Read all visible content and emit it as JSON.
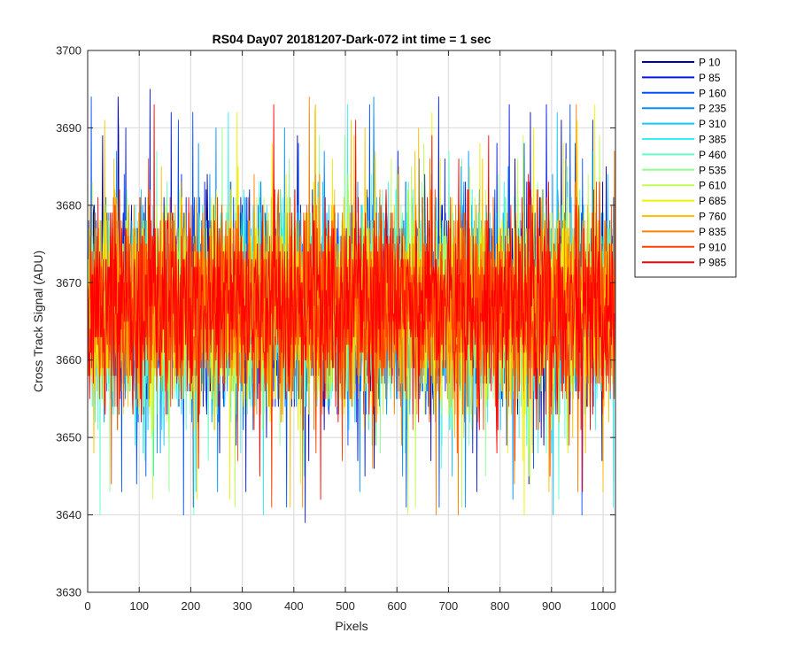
{
  "chart_data": {
    "type": "line",
    "title": "RS04 Day07 20181207-Dark-072 int time = 1 sec",
    "xlabel": "Pixels",
    "ylabel": "Cross Track Signal (ADU)",
    "xlim": [
      0,
      1024
    ],
    "ylim": [
      3630,
      3700
    ],
    "xticks": [
      0,
      100,
      200,
      300,
      400,
      500,
      600,
      700,
      800,
      900,
      1000
    ],
    "yticks": [
      3630,
      3640,
      3650,
      3660,
      3670,
      3680,
      3690,
      3700
    ],
    "xtick_labels": [
      "0",
      "100",
      "200",
      "300",
      "400",
      "500",
      "600",
      "700",
      "800",
      "900",
      "1000"
    ],
    "ytick_labels": [
      "3630",
      "3640",
      "3650",
      "3660",
      "3670",
      "3680",
      "3690",
      "3700"
    ],
    "grid": true,
    "legend_position": "outside-top-right",
    "noise": {
      "mean": 3667,
      "typical_range": [
        3650,
        3685
      ],
      "extreme_range": [
        3637,
        3696
      ]
    },
    "series": [
      {
        "name": "P 10",
        "color": "#0000aa"
      },
      {
        "name": "P 85",
        "color": "#0018e0"
      },
      {
        "name": "P 160",
        "color": "#0050ff"
      },
      {
        "name": "P 235",
        "color": "#0090ff"
      },
      {
        "name": "P 310",
        "color": "#10c8ff"
      },
      {
        "name": "P 385",
        "color": "#30f0f0"
      },
      {
        "name": "P 460",
        "color": "#60ffc8"
      },
      {
        "name": "P 535",
        "color": "#90ff90"
      },
      {
        "name": "P 610",
        "color": "#c0ff50"
      },
      {
        "name": "P 685",
        "color": "#f0f000"
      },
      {
        "name": "P 760",
        "color": "#ffc000"
      },
      {
        "name": "P 835",
        "color": "#ff8000"
      },
      {
        "name": "P 910",
        "color": "#ff4000"
      },
      {
        "name": "P 985",
        "color": "#ff0000"
      }
    ]
  }
}
